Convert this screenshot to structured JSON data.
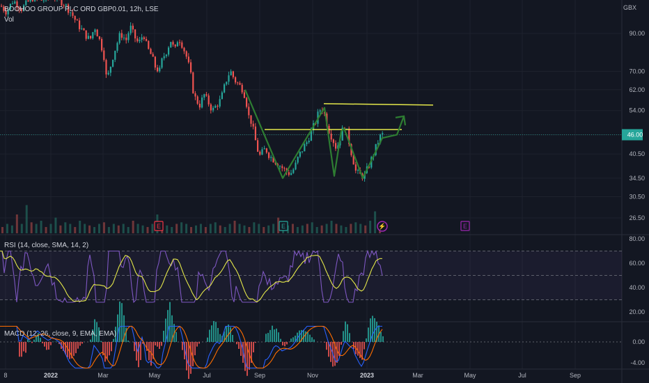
{
  "header": {
    "symbol_line": "BOOHOO GROUP PLC ORD GBP0.01, 12h, LSE",
    "vol_label": "Vol",
    "currency": "GBX",
    "rsi_label": "RSI (14, close, SMA, 14, 2)",
    "macd_label": "MACD (12, 26, close, 9, EMA, EMA)"
  },
  "colors": {
    "background": "#131722",
    "up": "#26a69a",
    "down": "#ef5350",
    "pattern": "#2e7d32",
    "resistance": "#e5e84a",
    "rsi_line": "#7e57c2",
    "rsi_ma": "#e5e84a",
    "macd_line": "#2962ff",
    "signal_line": "#ff6d00",
    "price_badge": "#26a69a",
    "earnings": "#f23645",
    "dividend": "#9c27b0"
  },
  "chart_data": {
    "type": "candlestick",
    "price_axis": {
      "ticks": [
        "90.00",
        "70.00",
        "62.00",
        "54.00",
        "46.00",
        "40.50",
        "34.50",
        "30.50",
        "26.50"
      ],
      "scale": "log"
    },
    "last_price": "46.00",
    "x_ticks": [
      {
        "label": "8",
        "bold": false
      },
      {
        "label": "2022",
        "bold": true
      },
      {
        "label": "Mar",
        "bold": false
      },
      {
        "label": "May",
        "bold": false
      },
      {
        "label": "Jul",
        "bold": false
      },
      {
        "label": "Sep",
        "bold": false
      },
      {
        "label": "Nov",
        "bold": false
      },
      {
        "label": "2023",
        "bold": true
      },
      {
        "label": "Mar",
        "bold": false
      },
      {
        "label": "May",
        "bold": false
      },
      {
        "label": "Jul",
        "bold": false
      },
      {
        "label": "Sep",
        "bold": false
      }
    ],
    "price_path": [
      [
        0,
        108
      ],
      [
        8,
        104
      ],
      [
        18,
        112
      ],
      [
        30,
        106
      ],
      [
        45,
        114
      ],
      [
        60,
        112
      ],
      [
        75,
        116
      ],
      [
        90,
        110
      ],
      [
        100,
        104
      ],
      [
        110,
        96
      ],
      [
        120,
        90
      ],
      [
        128,
        86
      ],
      [
        135,
        94
      ],
      [
        142,
        86
      ],
      [
        148,
        78
      ],
      [
        152,
        66
      ],
      [
        156,
        70
      ],
      [
        160,
        76
      ],
      [
        165,
        82
      ],
      [
        172,
        90
      ],
      [
        180,
        86
      ],
      [
        186,
        94
      ],
      [
        192,
        88
      ],
      [
        198,
        84
      ],
      [
        205,
        90
      ],
      [
        210,
        82
      ],
      [
        216,
        78
      ],
      [
        222,
        72
      ],
      [
        228,
        70
      ],
      [
        232,
        76
      ],
      [
        238,
        80
      ],
      [
        244,
        86
      ],
      [
        250,
        80
      ],
      [
        255,
        88
      ],
      [
        260,
        84
      ],
      [
        266,
        78
      ],
      [
        272,
        70
      ],
      [
        276,
        62
      ],
      [
        280,
        58
      ],
      [
        286,
        56
      ],
      [
        292,
        60
      ],
      [
        298,
        57
      ],
      [
        304,
        54
      ],
      [
        310,
        56
      ],
      [
        316,
        58
      ],
      [
        320,
        62
      ],
      [
        326,
        68
      ],
      [
        330,
        70
      ],
      [
        336,
        66
      ],
      [
        342,
        64
      ],
      [
        348,
        62
      ],
      [
        352,
        58
      ],
      [
        356,
        52
      ],
      [
        360,
        50
      ],
      [
        364,
        46
      ],
      [
        368,
        42
      ],
      [
        372,
        40
      ],
      [
        376,
        41
      ],
      [
        380,
        42
      ],
      [
        386,
        40
      ],
      [
        392,
        39
      ],
      [
        398,
        38
      ],
      [
        404,
        37
      ],
      [
        410,
        36
      ],
      [
        416,
        35.5
      ],
      [
        422,
        37
      ],
      [
        428,
        40
      ],
      [
        434,
        42
      ],
      [
        440,
        44
      ],
      [
        446,
        47
      ],
      [
        452,
        50
      ],
      [
        456,
        53
      ],
      [
        460,
        55
      ],
      [
        463,
        54
      ],
      [
        466,
        52
      ],
      [
        470,
        48
      ],
      [
        474,
        46
      ],
      [
        478,
        44
      ],
      [
        482,
        42
      ],
      [
        486,
        44
      ],
      [
        490,
        47
      ],
      [
        494,
        49
      ],
      [
        498,
        46
      ],
      [
        502,
        42
      ],
      [
        506,
        39
      ],
      [
        510,
        36
      ],
      [
        514,
        35.5
      ],
      [
        518,
        35
      ],
      [
        522,
        35
      ],
      [
        526,
        36.5
      ],
      [
        530,
        38
      ],
      [
        534,
        40
      ],
      [
        538,
        42
      ],
      [
        542,
        44
      ],
      [
        546,
        46
      ],
      [
        549,
        46
      ]
    ],
    "volume_rel": [
      0.2,
      0.3,
      0.25,
      0.6,
      0.3,
      0.9,
      0.35,
      0.3,
      0.4,
      0.2,
      0.3,
      0.5,
      0.25,
      0.35,
      0.3,
      0.2,
      0.4,
      0.3,
      0.25,
      0.2,
      0.3,
      0.35,
      0.2,
      0.3,
      0.25,
      0.3,
      0.2,
      0.4,
      0.3,
      0.25,
      0.2,
      0.3,
      0.6,
      0.3,
      0.25,
      0.2,
      0.3,
      0.35,
      0.3,
      0.2,
      0.25,
      0.3,
      0.2,
      0.3,
      0.35,
      0.25,
      0.2,
      0.3,
      0.4,
      0.3,
      0.25,
      0.2,
      0.35,
      0.3,
      0.2,
      0.25,
      0.3,
      0.5,
      0.3,
      0.25,
      0.3,
      0.2,
      0.25,
      0.3,
      0.35,
      0.2,
      0.25,
      0.3,
      0.4,
      0.3,
      0.25,
      0.2,
      0.3,
      0.35,
      0.3,
      0.25,
      0.4,
      0.7,
      0.3
    ],
    "rsi_axis": [
      "80.00",
      "60.00",
      "40.00",
      "20.00"
    ],
    "rsi_band": [
      30,
      70
    ],
    "macd_axis": [
      "0.00",
      "-4.00"
    ],
    "pattern_zigzag": [
      [
        352,
        62
      ],
      [
        406,
        34.5
      ],
      [
        466,
        55
      ],
      [
        480,
        35
      ],
      [
        490,
        47
      ],
      [
        494,
        48
      ],
      [
        521,
        34.5
      ],
      [
        549,
        45
      ],
      [
        570,
        46
      ],
      [
        580,
        52
      ]
    ],
    "resistance_lines": [
      {
        "from": [
          380,
          47.6
        ],
        "to": [
          577,
          47.6
        ]
      },
      {
        "from": [
          465,
          56.5
        ],
        "to": [
          622,
          56.0
        ]
      }
    ],
    "events": [
      {
        "x": 228,
        "type": "earnings",
        "glyph": "E"
      },
      {
        "x": 407,
        "type": "dividend-ex",
        "glyph": "E"
      },
      {
        "x": 549,
        "type": "split",
        "glyph": "⚡"
      },
      {
        "x": 668,
        "type": "upcoming-earnings",
        "glyph": "E"
      }
    ]
  }
}
